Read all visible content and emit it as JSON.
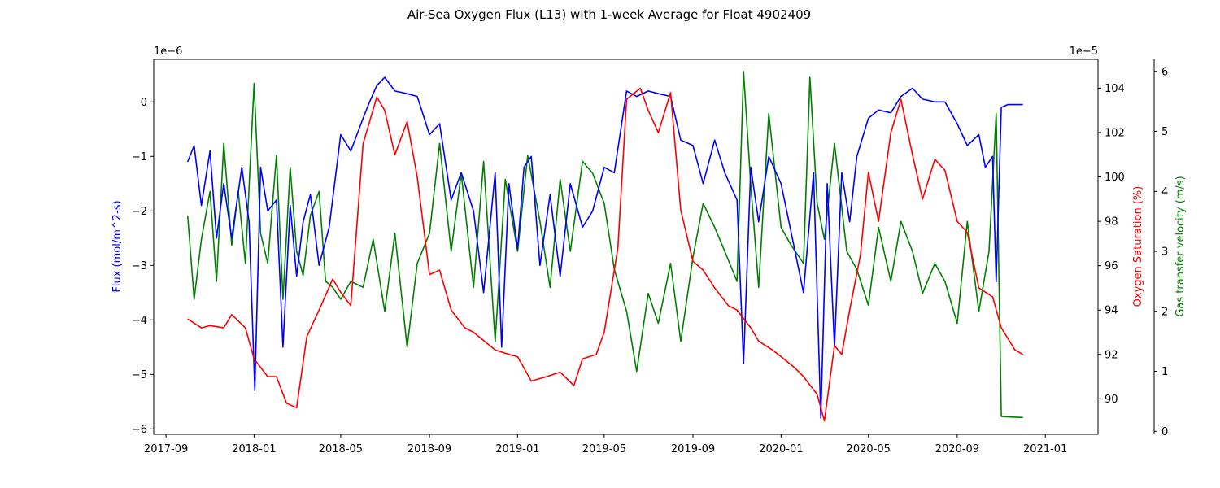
{
  "chart_data": {
    "type": "line",
    "title": "Air-Sea Oxygen Flux (L13) with 1-week Average for Float 4902409",
    "x_ticks": [
      "2017-09",
      "2018-01",
      "2018-05",
      "2018-09",
      "2019-01",
      "2019-05",
      "2019-09",
      "2020-01",
      "2020-05",
      "2020-09",
      "2021-01"
    ],
    "axes": {
      "left": {
        "label": "Flux (mol/m^2-s)",
        "color": "#0000ff",
        "exponent_label": "1e−6",
        "ylim": [
          -6.1,
          0.78
        ],
        "ticks": [
          "0",
          "−1",
          "−2",
          "−3",
          "−4",
          "−5",
          "−6"
        ],
        "tick_values": [
          0,
          -1,
          -2,
          -3,
          -4,
          -5,
          -6
        ]
      },
      "right1": {
        "label": "Oxygen Saturation (%)",
        "color": "#ff0000",
        "exponent_label": "1e−5",
        "ylim": [
          88.4,
          105.3
        ],
        "ticks": [
          "90",
          "92",
          "94",
          "96",
          "98",
          "100",
          "102",
          "104"
        ],
        "tick_values": [
          90,
          92,
          94,
          96,
          98,
          100,
          102,
          104
        ]
      },
      "right2": {
        "label": "Gas transfer velocity (m/s)",
        "color": "#008000",
        "ylim": [
          -0.05,
          6.2
        ],
        "ticks": [
          "0",
          "1",
          "2",
          "3",
          "4",
          "5",
          "6"
        ],
        "tick_values": [
          0,
          1,
          2,
          3,
          4,
          5,
          6
        ]
      }
    },
    "series": [
      {
        "axis": "left",
        "color": "#0000ff",
        "x": [
          "2017-10-01",
          "2017-10-10",
          "2017-10-20",
          "2017-11-01",
          "2017-11-10",
          "2017-11-20",
          "2017-12-01",
          "2017-12-15",
          "2017-12-25",
          "2018-01-02",
          "2018-01-10",
          "2018-01-20",
          "2018-02-01",
          "2018-02-10",
          "2018-02-20",
          "2018-03-01",
          "2018-03-10",
          "2018-03-20",
          "2018-04-01",
          "2018-04-15",
          "2018-05-01",
          "2018-05-15",
          "2018-06-01",
          "2018-06-10",
          "2018-06-20",
          "2018-07-01",
          "2018-07-15",
          "2018-08-01",
          "2018-08-15",
          "2018-09-01",
          "2018-09-15",
          "2018-10-01",
          "2018-10-15",
          "2018-11-01",
          "2018-11-15",
          "2018-12-01",
          "2018-12-10",
          "2018-12-20",
          "2019-01-01",
          "2019-01-10",
          "2019-01-20",
          "2019-02-01",
          "2019-02-15",
          "2019-03-01",
          "2019-03-15",
          "2019-04-01",
          "2019-04-15",
          "2019-05-01",
          "2019-05-15",
          "2019-06-01",
          "2019-06-15",
          "2019-07-01",
          "2019-07-15",
          "2019-08-01",
          "2019-08-15",
          "2019-09-01",
          "2019-09-15",
          "2019-10-01",
          "2019-10-15",
          "2019-11-01",
          "2019-11-10",
          "2019-11-20",
          "2019-12-01",
          "2019-12-15",
          "2020-01-01",
          "2020-01-15",
          "2020-02-01",
          "2020-02-15",
          "2020-02-25",
          "2020-03-05",
          "2020-03-15",
          "2020-03-25",
          "2020-04-05",
          "2020-04-15",
          "2020-05-01",
          "2020-05-15",
          "2020-06-01",
          "2020-06-15",
          "2020-07-01",
          "2020-07-15",
          "2020-08-01",
          "2020-08-15",
          "2020-09-01",
          "2020-09-15",
          "2020-10-01",
          "2020-10-10",
          "2020-10-20",
          "2020-10-25",
          "2020-11-01",
          "2020-11-10",
          "2020-11-20",
          "2020-12-01"
        ],
        "y": [
          -1.1,
          -0.8,
          -1.9,
          -0.9,
          -2.5,
          -1.5,
          -2.5,
          -1.2,
          -2.2,
          -5.3,
          -1.2,
          -2.0,
          -1.8,
          -4.5,
          -1.9,
          -3.2,
          -2.2,
          -1.7,
          -3.0,
          -2.3,
          -0.6,
          -0.9,
          -0.3,
          0.0,
          0.3,
          0.45,
          0.2,
          0.15,
          0.1,
          -0.6,
          -0.4,
          -1.8,
          -1.3,
          -2.0,
          -3.5,
          -1.3,
          -4.5,
          -1.5,
          -2.7,
          -1.2,
          -1.0,
          -3.0,
          -1.7,
          -3.2,
          -1.5,
          -2.3,
          -2.0,
          -1.2,
          -1.3,
          0.2,
          0.1,
          0.2,
          0.15,
          0.1,
          -0.7,
          -0.8,
          -1.5,
          -0.7,
          -1.3,
          -1.8,
          -4.8,
          -1.2,
          -2.2,
          -1.0,
          -1.5,
          -2.4,
          -3.5,
          -1.3,
          -5.8,
          -1.5,
          -4.5,
          -1.3,
          -2.2,
          -1.0,
          -0.3,
          -0.15,
          -0.2,
          0.1,
          0.25,
          0.05,
          0.0,
          0.0,
          -0.4,
          -0.8,
          -0.6,
          -1.2,
          -1.0,
          -3.3,
          -0.1,
          -0.05,
          -0.05,
          -0.05
        ]
      },
      {
        "axis": "right1",
        "color": "#ff0000",
        "x": [
          "2017-10-01",
          "2017-10-20",
          "2017-11-01",
          "2017-11-20",
          "2017-12-01",
          "2017-12-20",
          "2018-01-01",
          "2018-01-20",
          "2018-02-01",
          "2018-02-15",
          "2018-03-01",
          "2018-03-15",
          "2018-04-01",
          "2018-04-20",
          "2018-05-01",
          "2018-05-15",
          "2018-06-01",
          "2018-06-20",
          "2018-07-01",
          "2018-07-15",
          "2018-08-01",
          "2018-08-15",
          "2018-09-01",
          "2018-09-15",
          "2018-10-01",
          "2018-10-20",
          "2018-11-01",
          "2018-12-01",
          "2018-12-20",
          "2019-01-01",
          "2019-01-20",
          "2019-02-10",
          "2019-03-01",
          "2019-03-20",
          "2019-04-01",
          "2019-04-20",
          "2019-05-01",
          "2019-05-20",
          "2019-06-01",
          "2019-06-20",
          "2019-07-01",
          "2019-07-15",
          "2019-08-01",
          "2019-08-15",
          "2019-09-01",
          "2019-09-15",
          "2019-10-01",
          "2019-10-20",
          "2019-11-01",
          "2019-11-20",
          "2019-12-01",
          "2019-12-20",
          "2020-01-01",
          "2020-01-20",
          "2020-02-01",
          "2020-02-20",
          "2020-03-01",
          "2020-03-15",
          "2020-03-25",
          "2020-04-05",
          "2020-04-20",
          "2020-05-01",
          "2020-05-15",
          "2020-06-01",
          "2020-06-15",
          "2020-07-01",
          "2020-07-15",
          "2020-08-01",
          "2020-08-15",
          "2020-09-01",
          "2020-09-15",
          "2020-10-01",
          "2020-10-20",
          "2020-11-01",
          "2020-11-20",
          "2020-12-01"
        ],
        "y": [
          93.6,
          93.2,
          93.3,
          93.2,
          93.8,
          93.2,
          91.8,
          91.0,
          91.0,
          89.8,
          89.6,
          92.8,
          94.0,
          95.4,
          94.8,
          94.2,
          101.5,
          103.6,
          103.0,
          101.0,
          102.5,
          100.0,
          95.6,
          95.8,
          94.0,
          93.2,
          93.0,
          92.2,
          92.0,
          91.9,
          90.8,
          91.0,
          91.2,
          90.6,
          91.8,
          92.0,
          93.0,
          96.8,
          103.5,
          104.0,
          103.0,
          102.0,
          103.8,
          98.5,
          96.2,
          95.8,
          95.0,
          94.2,
          94.0,
          93.2,
          92.6,
          92.2,
          91.9,
          91.4,
          91.0,
          90.2,
          89.0,
          92.4,
          92.0,
          94.0,
          96.5,
          100.2,
          98.0,
          102.0,
          103.5,
          101.0,
          99.0,
          100.8,
          100.3,
          98.0,
          97.5,
          95.0,
          94.6,
          93.2,
          92.2,
          92.0
        ]
      },
      {
        "axis": "right2",
        "color": "#008000",
        "x": [
          "2017-10-01",
          "2017-10-10",
          "2017-10-20",
          "2017-11-01",
          "2017-11-10",
          "2017-11-20",
          "2017-12-01",
          "2017-12-10",
          "2017-12-20",
          "2018-01-01",
          "2018-01-10",
          "2018-01-20",
          "2018-02-01",
          "2018-02-10",
          "2018-02-20",
          "2018-03-01",
          "2018-03-10",
          "2018-03-20",
          "2018-04-01",
          "2018-04-10",
          "2018-04-20",
          "2018-05-01",
          "2018-05-15",
          "2018-06-01",
          "2018-06-15",
          "2018-07-01",
          "2018-07-15",
          "2018-08-01",
          "2018-08-15",
          "2018-09-01",
          "2018-09-15",
          "2018-10-01",
          "2018-10-15",
          "2018-11-01",
          "2018-11-15",
          "2018-12-01",
          "2018-12-15",
          "2019-01-01",
          "2019-01-15",
          "2019-02-01",
          "2019-02-15",
          "2019-03-01",
          "2019-03-15",
          "2019-04-01",
          "2019-04-15",
          "2019-05-01",
          "2019-05-15",
          "2019-06-01",
          "2019-06-15",
          "2019-07-01",
          "2019-07-15",
          "2019-08-01",
          "2019-08-15",
          "2019-09-01",
          "2019-09-15",
          "2019-10-01",
          "2019-10-15",
          "2019-11-01",
          "2019-11-10",
          "2019-11-20",
          "2019-12-01",
          "2019-12-15",
          "2020-01-01",
          "2020-01-15",
          "2020-02-01",
          "2020-02-10",
          "2020-02-20",
          "2020-03-01",
          "2020-03-15",
          "2020-04-01",
          "2020-04-15",
          "2020-05-01",
          "2020-05-15",
          "2020-06-01",
          "2020-06-15",
          "2020-07-01",
          "2020-07-15",
          "2020-08-01",
          "2020-08-15",
          "2020-09-01",
          "2020-09-15",
          "2020-10-01",
          "2020-10-15",
          "2020-10-25",
          "2020-11-01",
          "2020-11-10",
          "2020-12-01"
        ],
        "y": [
          3.6,
          2.2,
          3.2,
          4.0,
          2.5,
          4.8,
          3.1,
          4.0,
          2.8,
          5.8,
          3.3,
          2.8,
          4.6,
          2.2,
          4.4,
          3.0,
          2.6,
          3.6,
          4.0,
          2.5,
          2.4,
          2.2,
          2.5,
          2.4,
          3.2,
          2.0,
          3.3,
          1.4,
          2.8,
          3.3,
          4.8,
          3.0,
          4.3,
          2.4,
          4.5,
          1.5,
          4.2,
          3.0,
          4.6,
          3.5,
          2.4,
          4.2,
          3.0,
          4.5,
          4.3,
          3.8,
          2.7,
          2.0,
          1.0,
          2.3,
          1.8,
          2.8,
          1.5,
          2.9,
          3.8,
          3.4,
          3.0,
          2.5,
          6.0,
          4.1,
          2.4,
          5.3,
          3.4,
          3.1,
          2.8,
          5.9,
          3.8,
          3.2,
          4.8,
          3.0,
          2.7,
          2.1,
          3.4,
          2.5,
          3.5,
          3.0,
          2.3,
          2.8,
          2.5,
          1.8,
          3.5,
          2.0,
          3.0,
          5.3,
          0.25,
          0.24,
          0.23
        ]
      }
    ]
  }
}
